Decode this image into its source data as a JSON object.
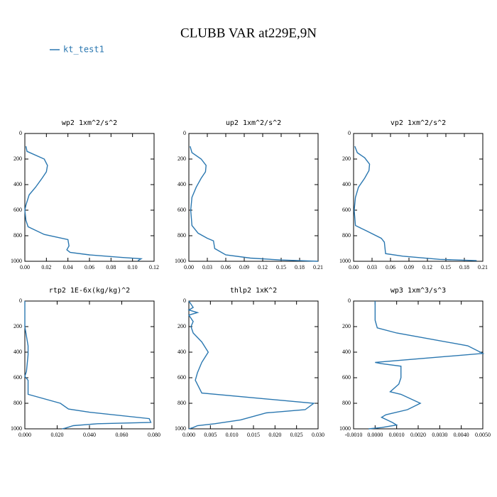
{
  "title": "CLUBB VAR at229E,9N",
  "legend": {
    "name": "kt_test1",
    "color": "#2a77b0"
  },
  "chart_data": [
    {
      "type": "line",
      "title": "wp2  1xm^2/s^2",
      "y_inverted": true,
      "color": "#2a77b0",
      "x": [
        0.001,
        0.002,
        0.018,
        0.021,
        0.02,
        0.016,
        0.01,
        0.004,
        0.001,
        0.0,
        0.001,
        0.003,
        0.018,
        0.04,
        0.041,
        0.039,
        0.042,
        0.06,
        0.09,
        0.108,
        0.105
      ],
      "y": [
        100,
        140,
        200,
        250,
        300,
        350,
        420,
        480,
        560,
        600,
        680,
        730,
        790,
        830,
        880,
        910,
        930,
        950,
        970,
        980,
        995
      ],
      "xlim": [
        0,
        0.12
      ],
      "xticks": [
        {
          "value": 0,
          "label": "0.00"
        },
        {
          "value": 0.02,
          "label": "0.02"
        },
        {
          "value": 0.04,
          "label": "0.04"
        },
        {
          "value": 0.06,
          "label": "0.06"
        },
        {
          "value": 0.08,
          "label": "0.08"
        },
        {
          "value": 0.1,
          "label": "0.10"
        },
        {
          "value": 0.12,
          "label": "0.12"
        }
      ],
      "ylim": [
        0,
        1000
      ],
      "yticks": [
        0,
        200,
        400,
        600,
        800,
        1000
      ]
    },
    {
      "type": "line",
      "title": "up2  1xm^2/s^2",
      "y_inverted": true,
      "color": "#2a77b0",
      "x": [
        0.002,
        0.005,
        0.02,
        0.028,
        0.027,
        0.02,
        0.012,
        0.005,
        0.003,
        0.005,
        0.015,
        0.03,
        0.04,
        0.042,
        0.06,
        0.1,
        0.15,
        0.21
      ],
      "y": [
        100,
        150,
        200,
        250,
        300,
        350,
        420,
        500,
        600,
        720,
        780,
        820,
        840,
        900,
        950,
        975,
        990,
        1000
      ],
      "xlim": [
        0,
        0.21
      ],
      "xticks": [
        {
          "value": 0,
          "label": "0.00"
        },
        0.03,
        0.06,
        0.09,
        0.12,
        0.15,
        0.18,
        0.21
      ],
      "ylim": [
        0,
        1000
      ],
      "yticks": [
        0,
        200,
        400,
        600,
        800,
        1000
      ]
    },
    {
      "type": "line",
      "title": "vp2  1xm^2/s^2",
      "y_inverted": true,
      "color": "#2a77b0",
      "x": [
        0.002,
        0.006,
        0.018,
        0.026,
        0.025,
        0.018,
        0.008,
        0.003,
        0.001,
        0.003,
        0.02,
        0.045,
        0.05,
        0.052,
        0.08,
        0.14,
        0.2
      ],
      "y": [
        100,
        150,
        190,
        240,
        290,
        350,
        420,
        500,
        600,
        720,
        760,
        820,
        850,
        940,
        960,
        985,
        995
      ],
      "xlim": [
        0,
        0.21
      ],
      "xticks": [
        {
          "value": 0,
          "label": "0.00"
        },
        0.03,
        0.06,
        0.09,
        0.12,
        0.15,
        0.18,
        0.21
      ],
      "ylim": [
        0,
        1000
      ],
      "yticks": [
        0,
        200,
        400,
        600,
        800,
        1000
      ]
    },
    {
      "type": "line",
      "title": "rtp2  1E-6x(kg/kg)^2",
      "y_inverted": true,
      "color": "#2a77b0",
      "x": [
        0,
        0,
        0.002,
        0.002,
        0.001,
        0.0,
        0.002,
        0.002,
        0.022,
        0.027,
        0.04,
        0.077,
        0.078,
        0.045,
        0.03,
        0.025,
        0.023
      ],
      "y": [
        0,
        200,
        350,
        420,
        550,
        590,
        620,
        730,
        800,
        845,
        870,
        920,
        950,
        960,
        975,
        995,
        1000
      ],
      "xlim": [
        0,
        0.08
      ],
      "xticks": [
        {
          "value": 0,
          "label": "0.000"
        },
        {
          "value": 0.02,
          "label": "0.020"
        },
        {
          "value": 0.04,
          "label": "0.040"
        },
        {
          "value": 0.06,
          "label": "0.060"
        },
        {
          "value": 0.08,
          "label": "0.080"
        }
      ],
      "ylim": [
        0,
        1000
      ],
      "yticks": [
        0,
        200,
        400,
        600,
        800,
        1000
      ]
    },
    {
      "type": "line",
      "title": "thlp2  1xK^2",
      "y_inverted": true,
      "color": "#2a77b0",
      "x": [
        0,
        0.001,
        0,
        0.002,
        0,
        0.001,
        0.0005,
        0.001,
        0.003,
        0.0045,
        0.003,
        0.002,
        0.0015,
        0.003,
        0.029,
        0.027,
        0.018,
        0.012,
        0.006,
        0.002,
        0.001,
        0.0
      ],
      "y": [
        0,
        50,
        70,
        90,
        110,
        160,
        200,
        250,
        320,
        400,
        480,
        560,
        620,
        720,
        800,
        850,
        875,
        930,
        960,
        975,
        990,
        1000
      ],
      "xlim": [
        0,
        0.03
      ],
      "xticks": [
        {
          "value": 0,
          "label": "0.000"
        },
        {
          "value": 0.005,
          "label": "0.005"
        },
        {
          "value": 0.01,
          "label": "0.010"
        },
        {
          "value": 0.015,
          "label": "0.015"
        },
        {
          "value": 0.02,
          "label": "0.020"
        },
        {
          "value": 0.025,
          "label": "0.025"
        },
        {
          "value": 0.03,
          "label": "0.030"
        }
      ],
      "ylim": [
        0,
        1000
      ],
      "yticks": [
        0,
        200,
        400,
        600,
        800,
        1000
      ]
    },
    {
      "type": "line",
      "title": "wp3  1xm^3/s^3",
      "y_inverted": true,
      "color": "#2a77b0",
      "x": [
        0,
        0,
        0.0001,
        0.001,
        0.0043,
        0.005,
        0,
        0.0003,
        0.0012,
        0.0012,
        0.0011,
        0.0007,
        0.0012,
        0.0021,
        0.0015,
        0.0005,
        0.0003,
        0.0008,
        0.001,
        0.0003,
        -0.0003
      ],
      "y": [
        0,
        150,
        210,
        250,
        350,
        410,
        480,
        490,
        510,
        600,
        650,
        710,
        730,
        800,
        850,
        890,
        910,
        950,
        970,
        990,
        1000
      ],
      "xlim": [
        -0.001,
        0.005
      ],
      "xticks": [
        {
          "value": -0.001,
          "label": "-0.0010"
        },
        {
          "value": 0,
          "label": "0.0000"
        },
        {
          "value": 0.001,
          "label": "0.0010"
        },
        {
          "value": 0.002,
          "label": "0.0020"
        },
        {
          "value": 0.003,
          "label": "0.0030"
        },
        {
          "value": 0.004,
          "label": "0.0040"
        },
        {
          "value": 0.005,
          "label": "0.0050"
        }
      ],
      "ylim": [
        0,
        1000
      ],
      "yticks": [
        0,
        200,
        400,
        600,
        800,
        1000
      ]
    }
  ]
}
